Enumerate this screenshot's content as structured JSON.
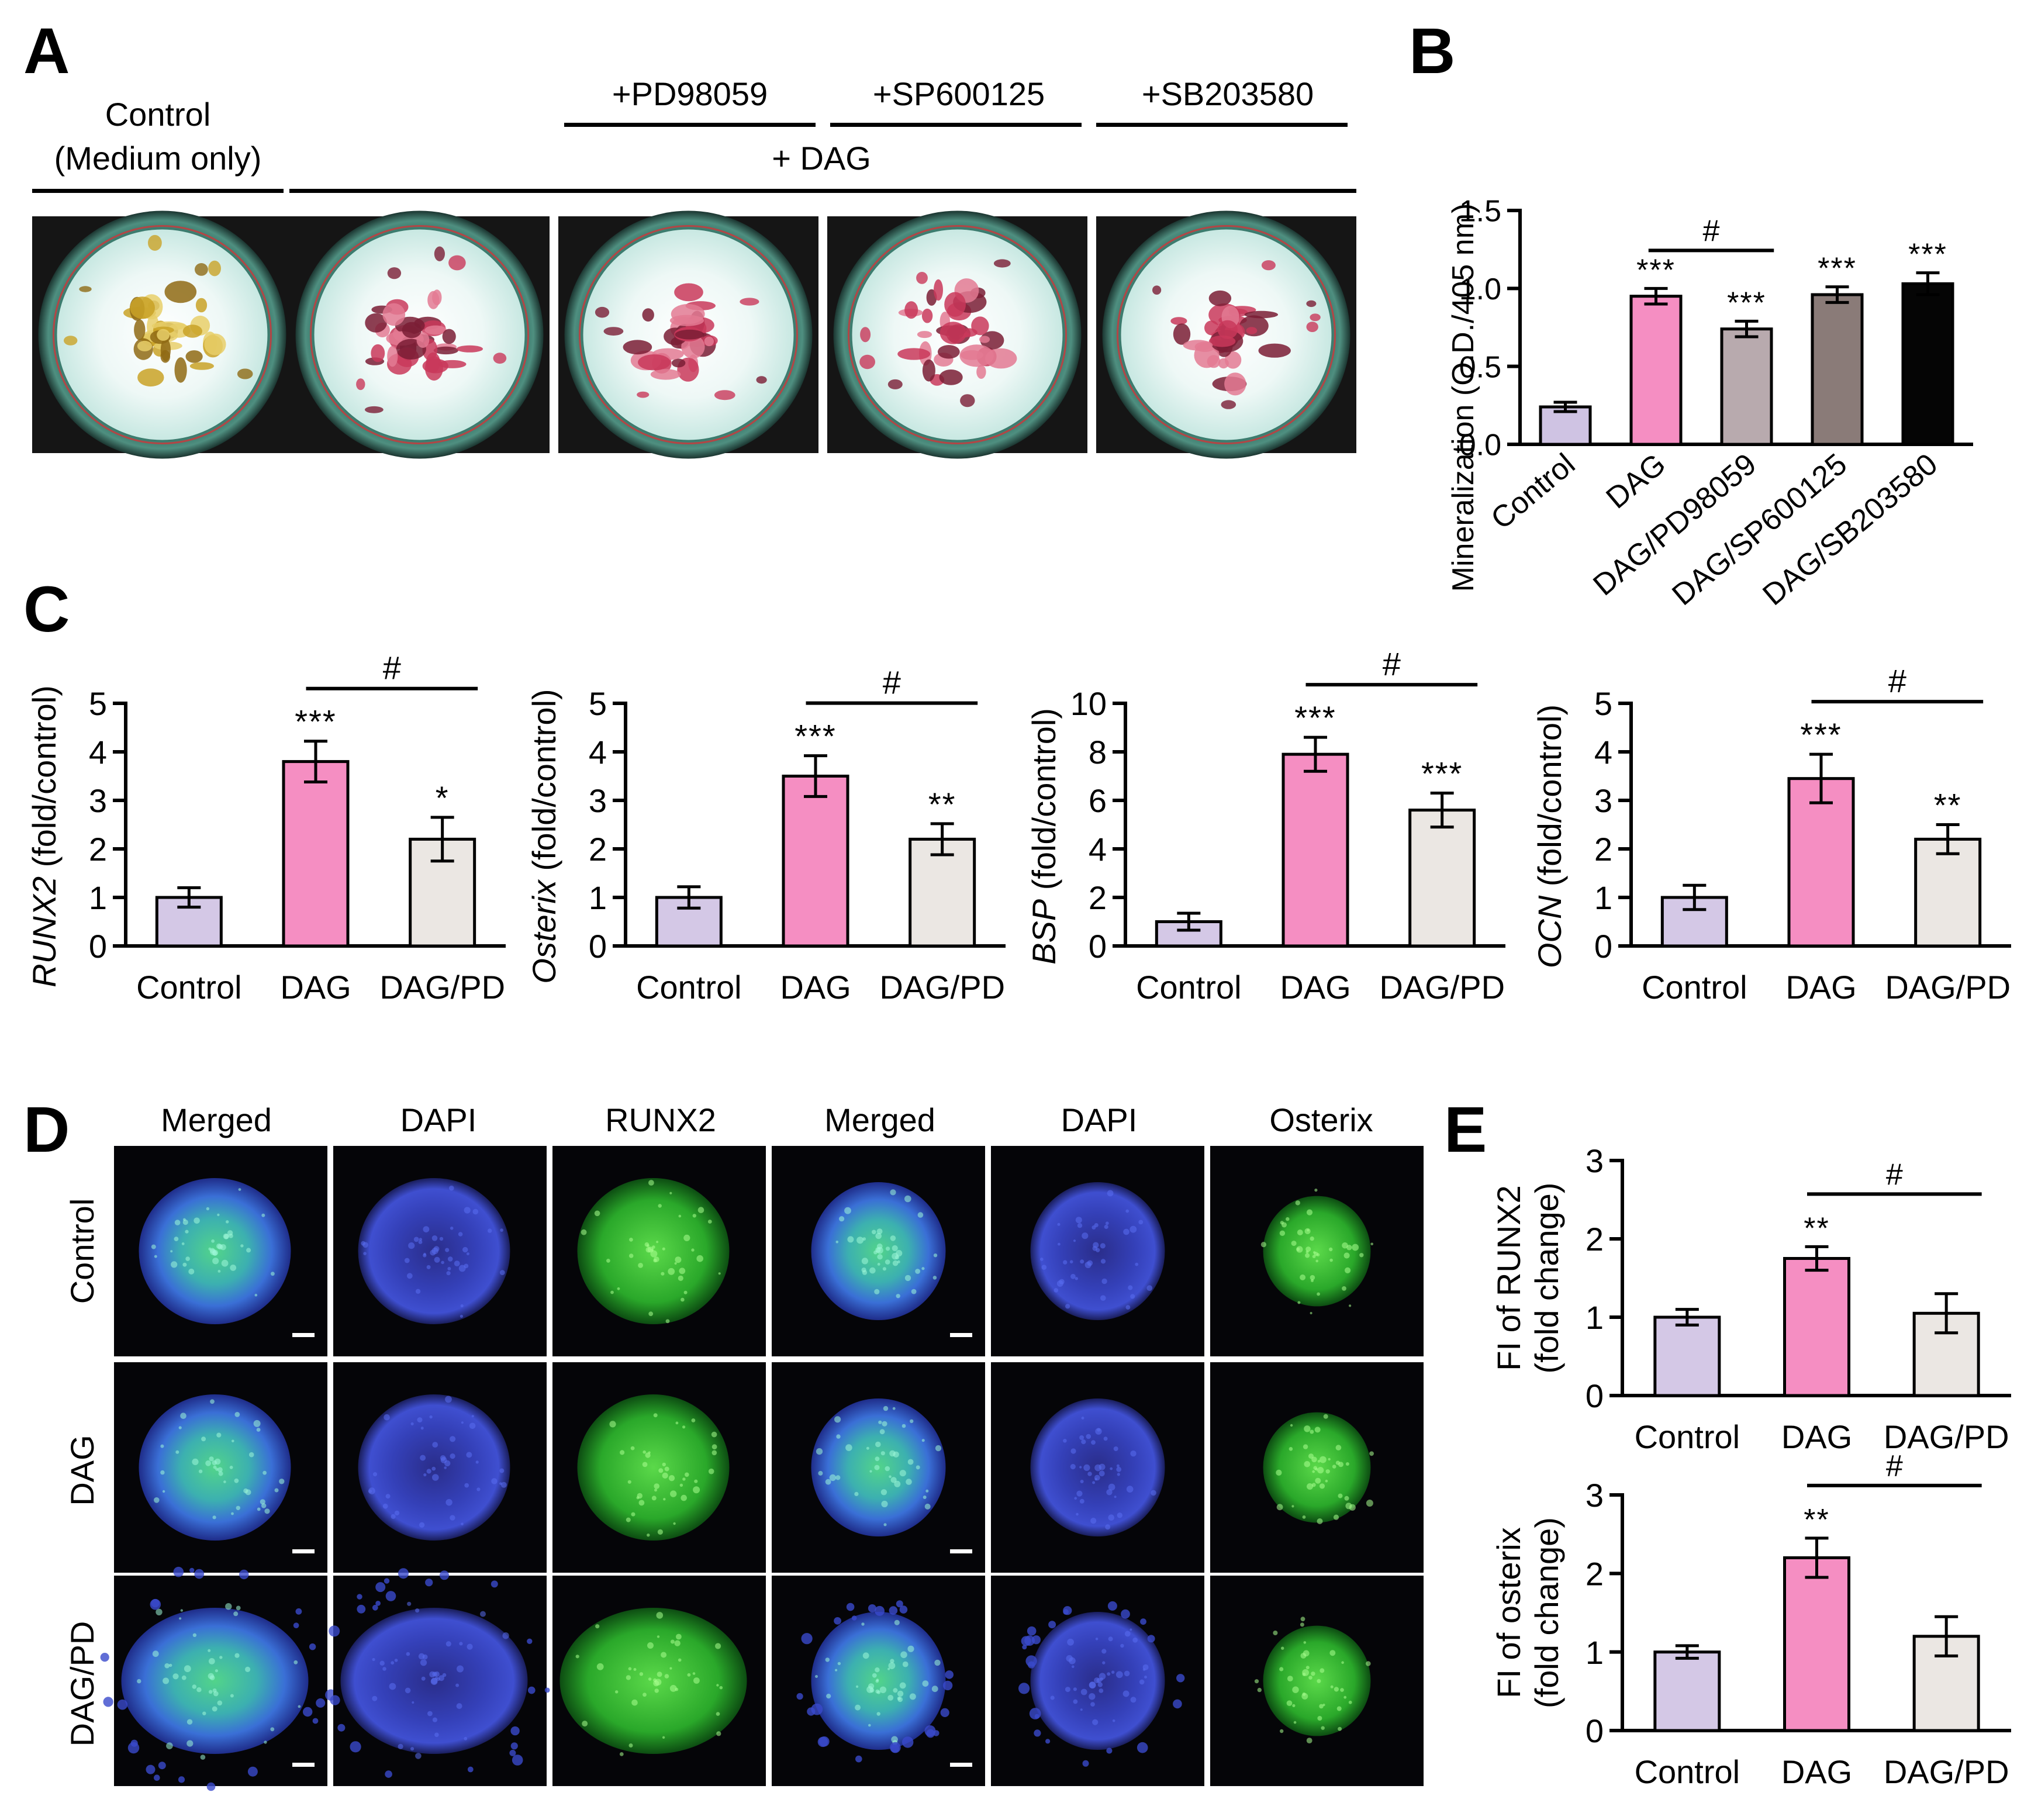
{
  "panel_letters": {
    "a": "A",
    "b": "B",
    "c": "C",
    "d": "D",
    "e": "E"
  },
  "panel_a": {
    "control_label_line1": "Control",
    "control_label_line2": "(Medium only)",
    "dag_label": "+ DAG",
    "inhibitor_labels": [
      "+PD98059",
      "+SP600125",
      "+SB203580"
    ],
    "wells": [
      {
        "name": "well-control",
        "stain": "yellow"
      },
      {
        "name": "well-dag",
        "stain": "red"
      },
      {
        "name": "well-dag-pd98059",
        "stain": "red"
      },
      {
        "name": "well-dag-sp600125",
        "stain": "red"
      },
      {
        "name": "well-dag-sb203580",
        "stain": "red"
      }
    ]
  },
  "panel_d": {
    "column_labels": [
      "Merged",
      "DAPI",
      "RUNX2",
      "Merged",
      "DAPI",
      "Osterix"
    ],
    "row_labels": [
      "Control",
      "DAG",
      "DAG/PD"
    ]
  },
  "chart_data": [
    {
      "id": "B",
      "type": "bar",
      "categories": [
        "Control",
        "DAG",
        "DAG/PD98059",
        "DAG/SP600125",
        "DAG/SB203580"
      ],
      "values": [
        0.24,
        0.95,
        0.74,
        0.96,
        1.03
      ],
      "errors": [
        0.03,
        0.05,
        0.05,
        0.05,
        0.07
      ],
      "colors": [
        "#cfc3e3",
        "#f58ec2",
        "#b8aaae",
        "#8a7b78",
        "#050505"
      ],
      "sig_labels": [
        "",
        "***",
        "***",
        "***",
        "***"
      ],
      "bracket": {
        "from": 1,
        "to": 2,
        "label": "#"
      },
      "ylabel": "Mineralization (O.D./405 nm)",
      "ylim": [
        0,
        1.5
      ],
      "yticks": [
        0.0,
        0.5,
        1.0,
        1.5
      ],
      "ytick_labels": [
        "0.0",
        "0.5",
        "1.0",
        "1.5"
      ],
      "rotated_categories": true
    },
    {
      "id": "C1",
      "type": "bar",
      "categories": [
        "Control",
        "DAG",
        "DAG/PD"
      ],
      "values": [
        1.0,
        3.8,
        2.2
      ],
      "errors": [
        0.2,
        0.42,
        0.45
      ],
      "colors": [
        "#d4c8e6",
        "#f58ec2",
        "#ebe7e3"
      ],
      "sig_labels": [
        "",
        "***",
        "*"
      ],
      "bracket": {
        "from": 1,
        "to": 2,
        "label": "#"
      },
      "ylabel_italic": "RUNX2",
      "ylabel_rest": " (fold/control)",
      "ylim": [
        0,
        5
      ],
      "yticks": [
        0,
        1,
        2,
        3,
        4,
        5
      ],
      "ytick_labels": [
        "0",
        "1",
        "2",
        "3",
        "4",
        "5"
      ]
    },
    {
      "id": "C2",
      "type": "bar",
      "categories": [
        "Control",
        "DAG",
        "DAG/PD"
      ],
      "values": [
        1.0,
        3.5,
        2.2
      ],
      "errors": [
        0.22,
        0.42,
        0.32
      ],
      "colors": [
        "#d4c8e6",
        "#f58ec2",
        "#ebe7e3"
      ],
      "sig_labels": [
        "",
        "***",
        "**"
      ],
      "bracket": {
        "from": 1,
        "to": 2,
        "label": "#"
      },
      "ylabel_italic": "Osterix",
      "ylabel_rest": " (fold/control)",
      "ylim": [
        0,
        5
      ],
      "yticks": [
        0,
        1,
        2,
        3,
        4,
        5
      ],
      "ytick_labels": [
        "0",
        "1",
        "2",
        "3",
        "4",
        "5"
      ]
    },
    {
      "id": "C3",
      "type": "bar",
      "categories": [
        "Control",
        "DAG",
        "DAG/PD"
      ],
      "values": [
        1.0,
        7.9,
        5.6
      ],
      "errors": [
        0.35,
        0.7,
        0.7
      ],
      "colors": [
        "#d4c8e6",
        "#f58ec2",
        "#ebe7e3"
      ],
      "sig_labels": [
        "",
        "***",
        "***"
      ],
      "bracket": {
        "from": 1,
        "to": 2,
        "label": "#"
      },
      "ylabel_italic": "BSP",
      "ylabel_rest": " (fold/control)",
      "ylim": [
        0,
        10
      ],
      "yticks": [
        0,
        2,
        4,
        6,
        8,
        10
      ],
      "ytick_labels": [
        "0",
        "2",
        "4",
        "6",
        "8",
        "10"
      ]
    },
    {
      "id": "C4",
      "type": "bar",
      "categories": [
        "Control",
        "DAG",
        "DAG/PD"
      ],
      "values": [
        1.0,
        3.45,
        2.2
      ],
      "errors": [
        0.25,
        0.5,
        0.3
      ],
      "colors": [
        "#d4c8e6",
        "#f58ec2",
        "#ebe7e3"
      ],
      "sig_labels": [
        "",
        "***",
        "**"
      ],
      "bracket": {
        "from": 1,
        "to": 2,
        "label": "#"
      },
      "ylabel_italic": "OCN",
      "ylabel_rest": " (fold/control)",
      "ylim": [
        0,
        5
      ],
      "yticks": [
        0,
        1,
        2,
        3,
        4,
        5
      ],
      "ytick_labels": [
        "0",
        "1",
        "2",
        "3",
        "4",
        "5"
      ]
    },
    {
      "id": "E1",
      "type": "bar",
      "categories": [
        "Control",
        "DAG",
        "DAG/PD"
      ],
      "values": [
        1.0,
        1.75,
        1.05
      ],
      "errors": [
        0.1,
        0.15,
        0.25
      ],
      "colors": [
        "#d4c8e6",
        "#f58ec2",
        "#ebe7e3"
      ],
      "sig_labels": [
        "",
        "**",
        ""
      ],
      "bracket": {
        "from": 1,
        "to": 2,
        "label": "#"
      },
      "ylabel_line1": "FI of RUNX2",
      "ylabel_line2": "(fold change)",
      "ylim": [
        0,
        3
      ],
      "yticks": [
        0,
        1,
        2,
        3
      ],
      "ytick_labels": [
        "0",
        "1",
        "2",
        "3"
      ]
    },
    {
      "id": "E2",
      "type": "bar",
      "categories": [
        "Control",
        "DAG",
        "DAG/PD"
      ],
      "values": [
        1.0,
        2.2,
        1.2
      ],
      "errors": [
        0.08,
        0.25,
        0.25
      ],
      "colors": [
        "#d4c8e6",
        "#f58ec2",
        "#ebe7e3"
      ],
      "sig_labels": [
        "",
        "**",
        ""
      ],
      "bracket": {
        "from": 1,
        "to": 2,
        "label": "#"
      },
      "ylabel_line1": "FI of osterix",
      "ylabel_line2": "(fold change)",
      "ylim": [
        0,
        3
      ],
      "yticks": [
        0,
        1,
        2,
        3
      ],
      "ytick_labels": [
        "0",
        "1",
        "2",
        "3"
      ]
    }
  ]
}
